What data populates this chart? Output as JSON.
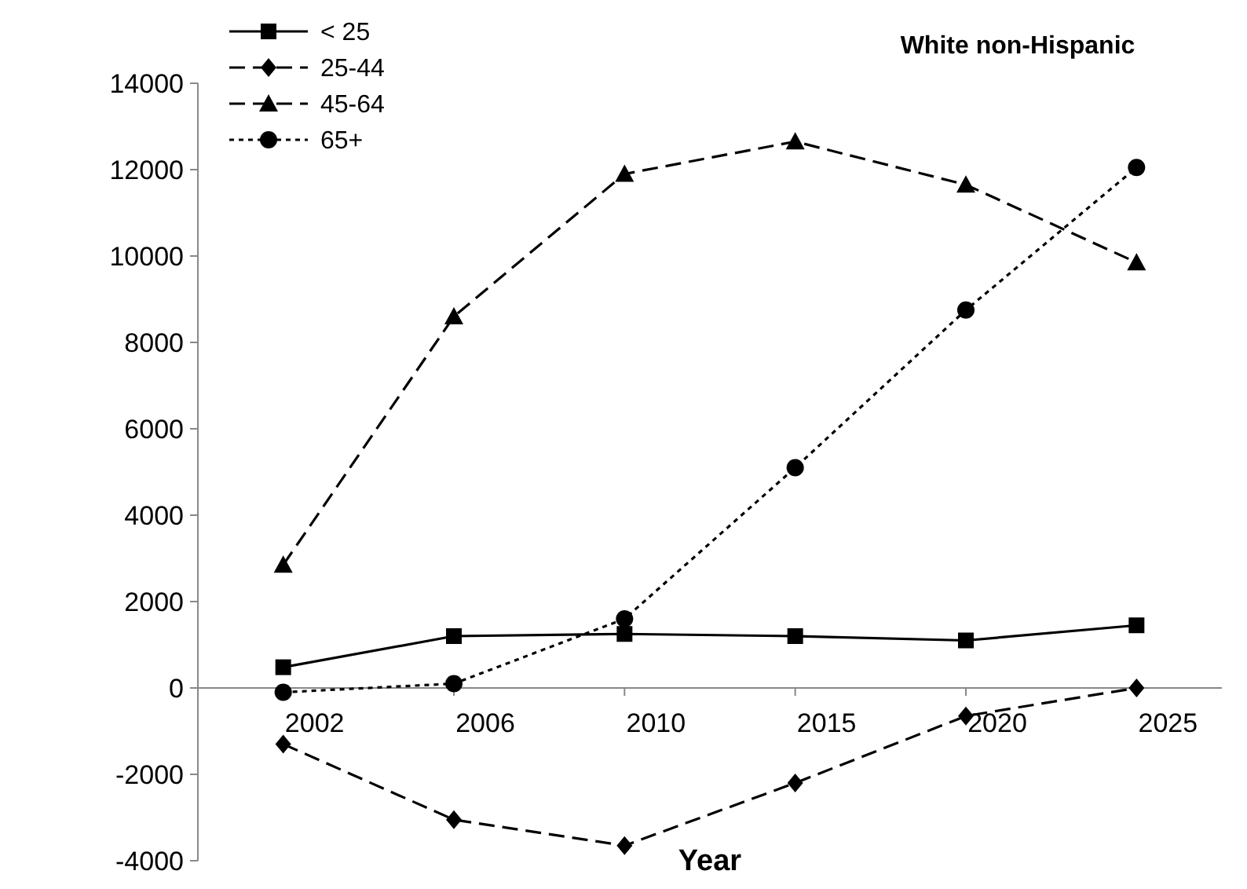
{
  "chart_data": {
    "type": "line",
    "title": "White non-Hispanic",
    "xlabel": "Year",
    "categories": [
      "2002",
      "2006",
      "2010",
      "2015",
      "2020",
      "2025"
    ],
    "series": [
      {
        "name": "< 25",
        "color": "#000000",
        "marker": "square",
        "line_style": "solid",
        "values": [
          480,
          1200,
          1250,
          1200,
          1100,
          1450
        ]
      },
      {
        "name": "25-44",
        "color": "#000000",
        "marker": "diamond",
        "line_style": "dashed",
        "values": [
          -1300,
          -3050,
          -3650,
          -2200,
          -650,
          0
        ]
      },
      {
        "name": "45-64",
        "color": "#000000",
        "marker": "triangle",
        "line_style": "dashed",
        "values": [
          2850,
          8600,
          11900,
          12650,
          11650,
          9850
        ]
      },
      {
        "name": "65+",
        "color": "#000000",
        "marker": "circle",
        "line_style": "dotted",
        "values": [
          -100,
          100,
          1600,
          5100,
          8750,
          12050
        ]
      }
    ],
    "ylim": [
      -4000,
      14000
    ],
    "yticks": [
      -4000,
      -2000,
      0,
      2000,
      4000,
      6000,
      8000,
      10000,
      12000,
      14000
    ],
    "grid": false,
    "legend": "top left"
  }
}
